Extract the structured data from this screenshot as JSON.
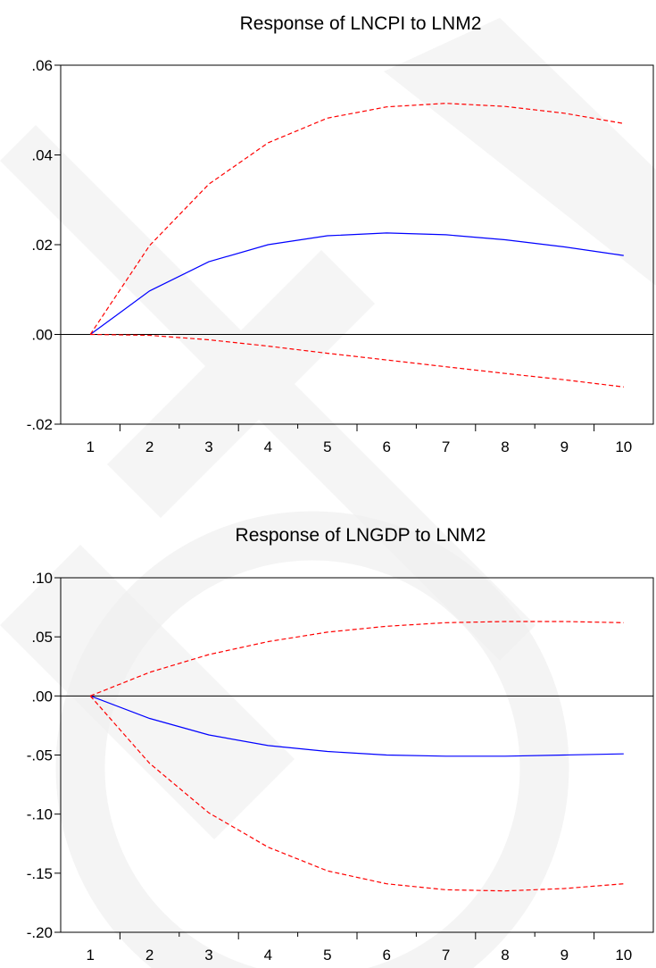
{
  "colors": {
    "response": "#0000ff",
    "bands": "#ff0000",
    "zero_line": "#000000",
    "watermark": "#eeeeee"
  },
  "chart_data": [
    {
      "type": "line",
      "title": "Response of LNCPI to LNM2",
      "xlabel": "",
      "ylabel": "",
      "x": [
        1,
        2,
        3,
        4,
        5,
        6,
        7,
        8,
        9,
        10
      ],
      "x_tick_labels": [
        "1",
        "2",
        "3",
        "4",
        "5",
        "6",
        "7",
        "8",
        "9",
        "10"
      ],
      "y_ticks": [
        -0.02,
        0.0,
        0.02,
        0.04,
        0.06
      ],
      "y_tick_labels": [
        "-.02",
        ".00",
        ".02",
        ".04",
        ".06"
      ],
      "ylim": [
        -0.02,
        0.06
      ],
      "grid": false,
      "zero_line": true,
      "series": [
        {
          "style": "solid",
          "color": "#0000ff",
          "values": [
            0.0,
            0.0097,
            0.0162,
            0.02,
            0.022,
            0.0226,
            0.0222,
            0.0211,
            0.0195,
            0.0176
          ]
        },
        {
          "style": "dashed",
          "color": "#ff0000",
          "values": [
            0.0,
            0.0198,
            0.0335,
            0.0427,
            0.0482,
            0.0507,
            0.0515,
            0.0508,
            0.0493,
            0.047
          ]
        },
        {
          "style": "dashed",
          "color": "#ff0000",
          "values": [
            0.0,
            -0.0002,
            -0.0012,
            -0.0026,
            -0.0042,
            -0.0057,
            -0.0072,
            -0.0087,
            -0.0101,
            -0.0117
          ]
        }
      ]
    },
    {
      "type": "line",
      "title": "Response of LNGDP to LNM2",
      "xlabel": "",
      "ylabel": "",
      "x": [
        1,
        2,
        3,
        4,
        5,
        6,
        7,
        8,
        9,
        10
      ],
      "x_tick_labels": [
        "1",
        "2",
        "3",
        "4",
        "5",
        "6",
        "7",
        "8",
        "9",
        "10"
      ],
      "y_ticks": [
        -0.2,
        -0.15,
        -0.1,
        -0.05,
        0.0,
        0.05,
        0.1
      ],
      "y_tick_labels": [
        "-.20",
        "-.15",
        "-.10",
        "-.05",
        ".00",
        ".05",
        ".10"
      ],
      "ylim": [
        -0.2,
        0.1
      ],
      "grid": false,
      "zero_line": true,
      "series": [
        {
          "style": "solid",
          "color": "#0000ff",
          "values": [
            0.0,
            -0.019,
            -0.033,
            -0.042,
            -0.047,
            -0.05,
            -0.051,
            -0.051,
            -0.05,
            -0.049
          ]
        },
        {
          "style": "dashed",
          "color": "#ff0000",
          "values": [
            0.0,
            0.02,
            0.035,
            0.046,
            0.054,
            0.059,
            0.062,
            0.063,
            0.063,
            0.062
          ]
        },
        {
          "style": "dashed",
          "color": "#ff0000",
          "values": [
            0.0,
            -0.057,
            -0.099,
            -0.128,
            -0.148,
            -0.159,
            -0.164,
            -0.165,
            -0.163,
            -0.159
          ]
        }
      ]
    }
  ]
}
